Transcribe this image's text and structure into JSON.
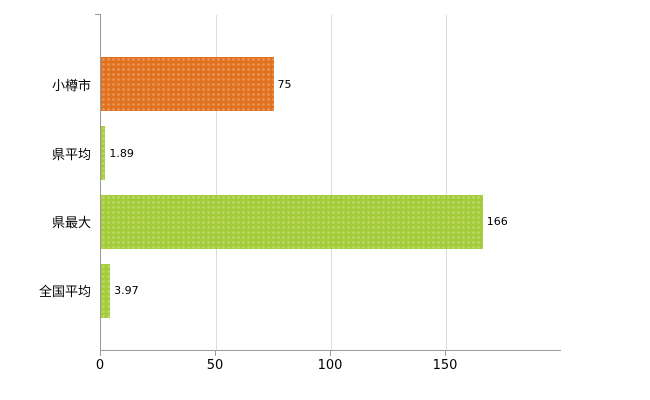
{
  "chart_data": {
    "type": "bar",
    "orientation": "horizontal",
    "title": "",
    "xlabel": "",
    "ylabel": "",
    "categories": [
      "小樽市",
      "県平均",
      "県最大",
      "全国平均"
    ],
    "values": [
      75,
      1.89,
      166,
      3.97
    ],
    "value_labels": [
      "75",
      "1.89",
      "166",
      "3.97"
    ],
    "bar_colors": [
      "#e0711f",
      "#a3cc38",
      "#a3cc38",
      "#a3cc38"
    ],
    "xlim": [
      0,
      200
    ],
    "x_ticks": [
      0,
      50,
      100,
      150
    ],
    "x_tick_labels": [
      "0",
      "50",
      "100",
      "150"
    ],
    "grid": true,
    "legend": "none",
    "background": "#ffffff"
  },
  "colors": {
    "orange": "#e0711f",
    "green": "#a3cc38",
    "axis": "#9a9a9a",
    "gridline": "#dcdcdc",
    "text": "#000000"
  }
}
